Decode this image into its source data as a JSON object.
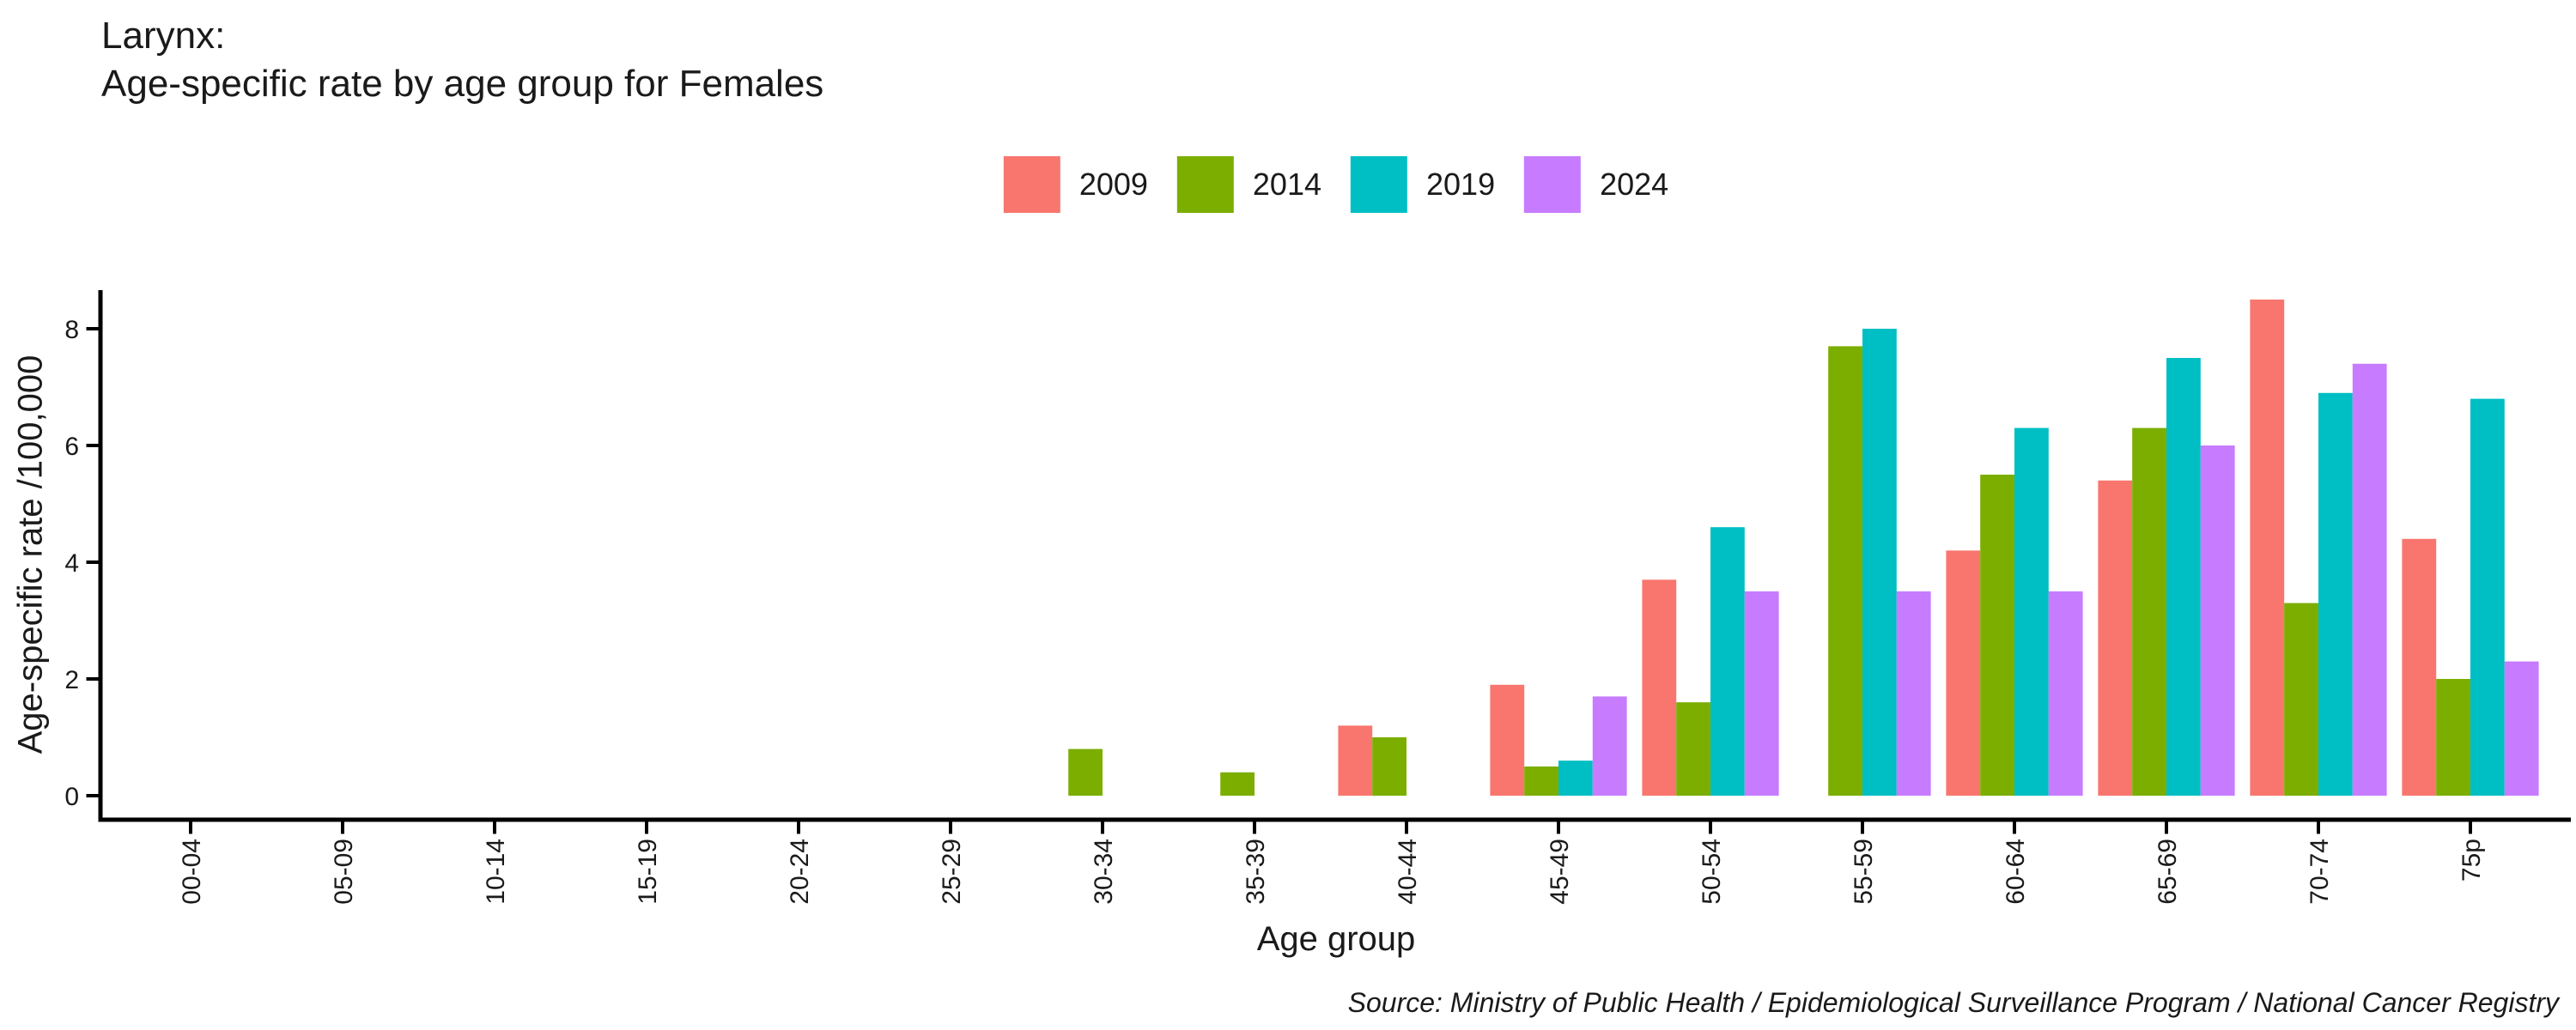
{
  "title": {
    "line1": "Larynx:",
    "line2": "Age-specific rate by age group for Females"
  },
  "axes": {
    "y_label": "Age-specific rate /100,000",
    "x_label": "Age group",
    "y_ticks": [
      0,
      2,
      4,
      6,
      8
    ]
  },
  "source": "Source: Ministry of Public Health / Epidemiological Surveillance Program / National Cancer Registry",
  "chart_data": {
    "type": "bar",
    "title": "Larynx: Age-specific rate by age group for Females",
    "xlabel": "Age group",
    "ylabel": "Age-specific rate /100,000",
    "ylim": [
      0,
      8.5
    ],
    "grid": false,
    "legend_position": "top",
    "categories": [
      "00-04",
      "05-09",
      "10-14",
      "15-19",
      "20-24",
      "25-29",
      "30-34",
      "35-39",
      "40-44",
      "45-49",
      "50-54",
      "55-59",
      "60-64",
      "65-69",
      "70-74",
      "75p"
    ],
    "series": [
      {
        "name": "2009",
        "color": "#F8766D",
        "values": [
          null,
          null,
          null,
          null,
          null,
          null,
          null,
          null,
          1.2,
          1.9,
          3.7,
          null,
          4.2,
          5.4,
          8.5,
          4.4
        ]
      },
      {
        "name": "2014",
        "color": "#7CAE00",
        "values": [
          null,
          null,
          null,
          null,
          null,
          null,
          0.8,
          0.4,
          1.0,
          0.5,
          1.6,
          7.7,
          5.5,
          6.3,
          3.3,
          2.0
        ]
      },
      {
        "name": "2019",
        "color": "#00BFC4",
        "values": [
          null,
          null,
          null,
          null,
          null,
          null,
          null,
          null,
          null,
          0.6,
          4.6,
          8.0,
          6.3,
          7.5,
          6.9,
          6.8
        ]
      },
      {
        "name": "2024",
        "color": "#C77CFF",
        "values": [
          null,
          null,
          null,
          null,
          null,
          null,
          null,
          null,
          null,
          1.7,
          3.5,
          3.5,
          3.5,
          6.0,
          7.4,
          2.3
        ]
      }
    ]
  }
}
